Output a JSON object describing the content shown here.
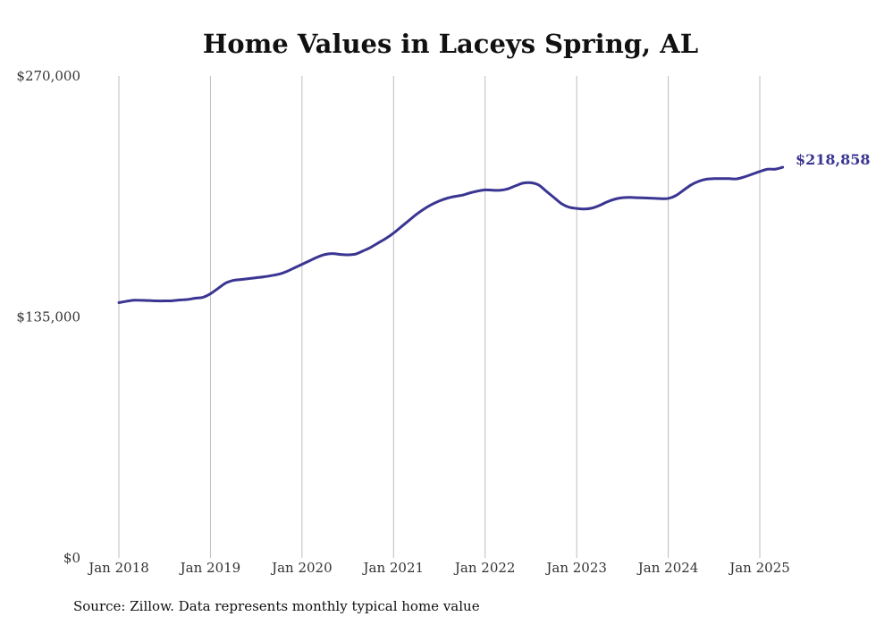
{
  "chart_data": {
    "type": "line",
    "title": "Home Values in Laceys Spring, AL",
    "source_note": "Source: Zillow. Data represents monthly typical home value",
    "ylim": [
      0,
      270000
    ],
    "yticks": [
      {
        "value": 0,
        "label": "$0"
      },
      {
        "value": 135000,
        "label": "$135,000"
      },
      {
        "value": 270000,
        "label": "$270,000"
      }
    ],
    "xticks": [
      {
        "value": "2018-01",
        "label": "Jan 2018"
      },
      {
        "value": "2019-01",
        "label": "Jan 2019"
      },
      {
        "value": "2020-01",
        "label": "Jan 2020"
      },
      {
        "value": "2021-01",
        "label": "Jan 2021"
      },
      {
        "value": "2022-01",
        "label": "Jan 2022"
      },
      {
        "value": "2023-01",
        "label": "Jan 2023"
      },
      {
        "value": "2024-01",
        "label": "Jan 2024"
      },
      {
        "value": "2025-01",
        "label": "Jan 2025"
      }
    ],
    "grid": "vertical",
    "line_color": "#3a3592",
    "end_label": "$218,858",
    "series": [
      {
        "x": [
          "2018-01",
          "2018-02",
          "2018-03",
          "2018-04",
          "2018-05",
          "2018-06",
          "2018-07",
          "2018-08",
          "2018-09",
          "2018-10",
          "2018-11",
          "2018-12",
          "2019-01",
          "2019-02",
          "2019-03",
          "2019-04",
          "2019-05",
          "2019-06",
          "2019-07",
          "2019-08",
          "2019-09",
          "2019-10",
          "2019-11",
          "2019-12",
          "2020-01",
          "2020-02",
          "2020-03",
          "2020-04",
          "2020-05",
          "2020-06",
          "2020-07",
          "2020-08",
          "2020-09",
          "2020-10",
          "2020-11",
          "2020-12",
          "2021-01",
          "2021-02",
          "2021-03",
          "2021-04",
          "2021-05",
          "2021-06",
          "2021-07",
          "2021-08",
          "2021-09",
          "2021-10",
          "2021-11",
          "2021-12",
          "2022-01",
          "2022-02",
          "2022-03",
          "2022-04",
          "2022-05",
          "2022-06",
          "2022-07",
          "2022-08",
          "2022-09",
          "2022-10",
          "2022-11",
          "2022-12",
          "2023-01",
          "2023-02",
          "2023-03",
          "2023-04",
          "2023-05",
          "2023-06",
          "2023-07",
          "2023-08",
          "2023-09",
          "2023-10",
          "2023-11",
          "2023-12",
          "2024-01",
          "2024-02",
          "2024-03",
          "2024-04",
          "2024-05",
          "2024-06",
          "2024-07",
          "2024-08",
          "2024-09",
          "2024-10",
          "2024-11",
          "2024-12",
          "2025-01",
          "2025-02",
          "2025-03",
          "2025-04"
        ],
        "values": [
          143000,
          143800,
          144400,
          144300,
          144200,
          144000,
          144000,
          144100,
          144500,
          144800,
          145500,
          146000,
          148000,
          151000,
          154000,
          155500,
          156000,
          156500,
          157000,
          157500,
          158200,
          159000,
          160500,
          162500,
          164500,
          166500,
          168500,
          170000,
          170500,
          170000,
          169800,
          170200,
          172000,
          174000,
          176500,
          179000,
          182000,
          185500,
          189000,
          192500,
          195500,
          198000,
          200000,
          201500,
          202500,
          203200,
          204500,
          205500,
          206200,
          206000,
          206000,
          206800,
          208500,
          210000,
          210200,
          209000,
          205500,
          202000,
          198500,
          196500,
          195800,
          195500,
          196000,
          197500,
          199500,
          201000,
          201800,
          202000,
          201800,
          201700,
          201500,
          201300,
          201400,
          203000,
          206000,
          209000,
          211000,
          212200,
          212500,
          212500,
          212500,
          212400,
          213500,
          215000,
          216500,
          217800,
          217800,
          218858
        ]
      }
    ]
  }
}
